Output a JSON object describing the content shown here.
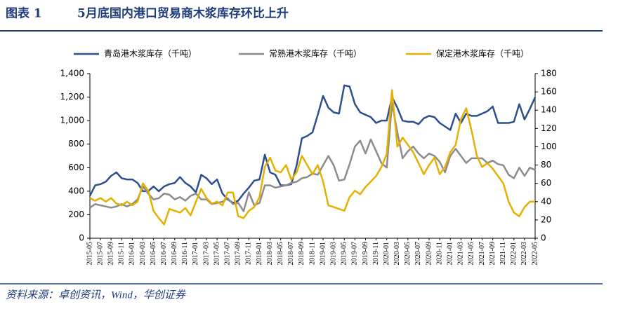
{
  "chart_data": {
    "type": "line",
    "figure_label": "图表 1",
    "title": "5月底国内港口贸易商木浆库存环比上升",
    "source": "资料来源：卓创资讯，Wind，华创证券",
    "categories": [
      "2015-05",
      null,
      "2015-07",
      null,
      "2015-09",
      null,
      "2015-11",
      null,
      "2016-01",
      null,
      "2016-03",
      null,
      "2016-05",
      null,
      "2016-07",
      null,
      "2016-09",
      null,
      "2016-11",
      null,
      "2017-01",
      null,
      "2017-03",
      null,
      "2017-05",
      null,
      "2017-07",
      null,
      "2017-09",
      null,
      "2017-11",
      null,
      "2018-01",
      null,
      "2018-03",
      null,
      "2018-05",
      null,
      "2018-07",
      null,
      "2018-09",
      null,
      "2018-11",
      null,
      "2019-01",
      null,
      "2019-03",
      null,
      "2019-05",
      null,
      "2019-07",
      null,
      "2019-09",
      null,
      "2019-11",
      null,
      "2020-01",
      null,
      "2020-03",
      null,
      "2020-05",
      null,
      "2020-07",
      null,
      "2020-09",
      null,
      "2020-11",
      null,
      "2021-01",
      null,
      "2021-03",
      null,
      "2021-05",
      null,
      "2021-07",
      null,
      "2021-09",
      null,
      "2021-11",
      null,
      "2022-01",
      null,
      "2022-03",
      null,
      "2022-05"
    ],
    "series": [
      {
        "name": "青岛港木浆库存（千吨）",
        "color": "#2e4f8f",
        "values": [
          360,
          450,
          460,
          480,
          530,
          560,
          510,
          500,
          500,
          470,
          400,
          400,
          440,
          400,
          440,
          460,
          470,
          520,
          470,
          440,
          390,
          540,
          510,
          460,
          500,
          380,
          330,
          300,
          320,
          380,
          430,
          490,
          500,
          710,
          560,
          540,
          450,
          450,
          460,
          620,
          850,
          870,
          900,
          1050,
          1210,
          1110,
          1070,
          1060,
          1300,
          1290,
          1140,
          1070,
          1050,
          1030,
          980,
          1000,
          1000,
          1200,
          1110,
          1000,
          990,
          990,
          970,
          1020,
          1040,
          1030,
          980,
          950,
          920,
          1060,
          980,
          1060,
          1040,
          1040,
          1060,
          1080,
          1120,
          980,
          980,
          980,
          990,
          1140,
          1010,
          1100,
          1200
        ]
      },
      {
        "name": "常熟港木浆库存（千吨）",
        "color": "#8c8c8c",
        "values": [
          260,
          290,
          280,
          270,
          260,
          270,
          290,
          270,
          290,
          330,
          440,
          380,
          330,
          340,
          380,
          370,
          330,
          350,
          320,
          360,
          380,
          330,
          330,
          290,
          300,
          310,
          340,
          290,
          300,
          230,
          390,
          280,
          300,
          450,
          450,
          430,
          440,
          450,
          470,
          480,
          510,
          520,
          550,
          540,
          620,
          700,
          620,
          490,
          500,
          630,
          780,
          830,
          720,
          840,
          740,
          640,
          600,
          1150,
          900,
          680,
          740,
          780,
          720,
          680,
          720,
          700,
          650,
          560,
          700,
          760,
          700,
          640,
          680,
          680,
          680,
          640,
          660,
          630,
          620,
          540,
          510,
          600,
          530,
          600,
          580
        ]
      },
      {
        "name": "保定港木浆库存（千吨）",
        "color": "#e6b000",
        "axis": "y2",
        "values": [
          44,
          41,
          44,
          40,
          44,
          38,
          36,
          40,
          36,
          40,
          60,
          52,
          30,
          22,
          15,
          32,
          30,
          28,
          33,
          25,
          40,
          54,
          44,
          38,
          40,
          36,
          50,
          50,
          24,
          22,
          30,
          34,
          45,
          78,
          88,
          74,
          72,
          80,
          64,
          72,
          90,
          80,
          70,
          80,
          62,
          36,
          34,
          32,
          30,
          45,
          52,
          48,
          56,
          62,
          68,
          78,
          92,
          162,
          100,
          110,
          102,
          94,
          82,
          70,
          80,
          88,
          70,
          78,
          94,
          102,
          130,
          142,
          118,
          90,
          78,
          82,
          76,
          68,
          60,
          40,
          28,
          24,
          34,
          40,
          40
        ]
      }
    ],
    "ylim": [
      0,
      1400
    ],
    "yticks": [
      0,
      200,
      400,
      600,
      800,
      {
        "value": 1000,
        "label": "1,000"
      },
      {
        "value": 1200,
        "label": "1,200"
      },
      {
        "value": 1400,
        "label": "1,400"
      }
    ],
    "y2lim": [
      0,
      180
    ],
    "y2ticks": [
      0,
      20,
      40,
      60,
      80,
      100,
      120,
      140,
      160,
      180
    ],
    "grid": false
  }
}
